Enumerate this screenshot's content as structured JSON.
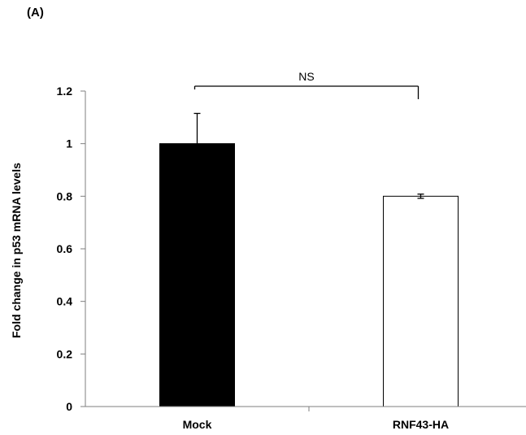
{
  "panel_label": "(A)",
  "chart_data": {
    "type": "bar",
    "categories": [
      "Mock",
      "RNF43-HA"
    ],
    "values": [
      1.0,
      0.8
    ],
    "error": [
      0.115,
      0.008
    ],
    "bar_colors": [
      "#000000",
      "#ffffff"
    ],
    "ylabel": "Fold change in p53 mRNA levels",
    "ylim": [
      0,
      1.2
    ],
    "yticks": [
      0,
      0.2,
      0.4,
      0.6,
      0.8,
      1,
      1.2
    ],
    "ytick_labels": [
      "0",
      "0.2",
      "0.4",
      "0.6",
      "0.8",
      "1",
      "1.2"
    ],
    "grid": false,
    "significance": {
      "label": "NS",
      "between": [
        "Mock",
        "RNF43-HA"
      ]
    }
  }
}
